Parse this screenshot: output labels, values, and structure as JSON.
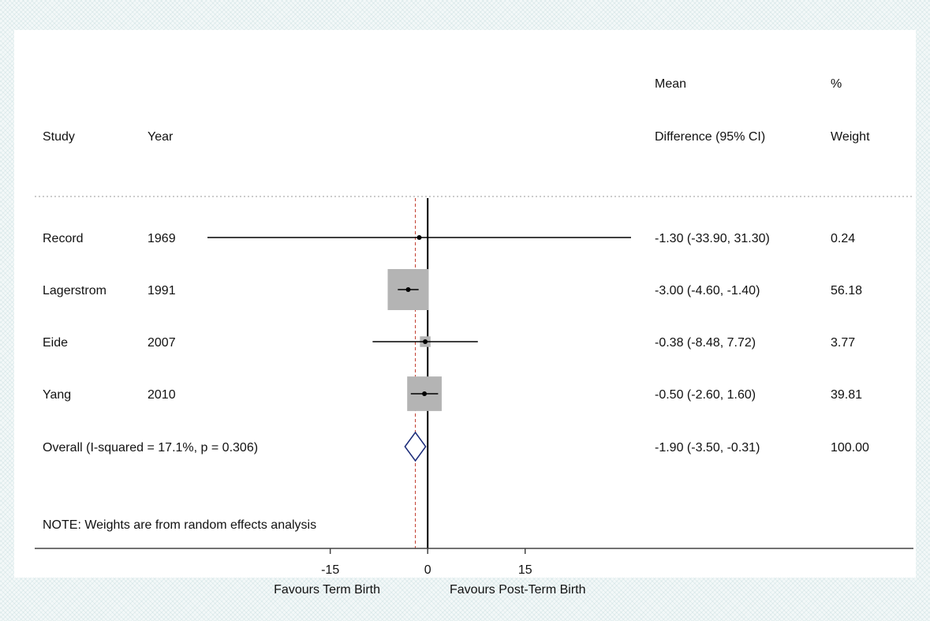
{
  "chart_data": {
    "type": "forest",
    "columns": {
      "study": "Study",
      "year": "Year",
      "md_line1": "Mean",
      "md_line2": "Difference (95% CI)",
      "weight_line1": "%",
      "weight_line2": "Weight"
    },
    "studies": [
      {
        "study": "Record",
        "year": "1969",
        "md": -1.3,
        "lo": -33.9,
        "hi": 31.3,
        "ci_text": "-1.30 (-33.90, 31.30)",
        "weight": 0.24,
        "weight_text": "0.24"
      },
      {
        "study": "Lagerstrom",
        "year": "1991",
        "md": -3.0,
        "lo": -4.6,
        "hi": -1.4,
        "ci_text": "-3.00 (-4.60, -1.40)",
        "weight": 56.18,
        "weight_text": "56.18"
      },
      {
        "study": "Eide",
        "year": "2007",
        "md": -0.38,
        "lo": -8.48,
        "hi": 7.72,
        "ci_text": "-0.38 (-8.48, 7.72)",
        "weight": 3.77,
        "weight_text": "3.77"
      },
      {
        "study": "Yang",
        "year": "2010",
        "md": -0.5,
        "lo": -2.6,
        "hi": 1.6,
        "ci_text": "-0.50 (-2.60, 1.60)",
        "weight": 39.81,
        "weight_text": "39.81"
      }
    ],
    "overall": {
      "label": "Overall  (I-squared = 17.1%, p = 0.306)",
      "md": -1.9,
      "lo": -3.5,
      "hi": -0.31,
      "ci_text": "-1.90 (-3.50, -0.31)",
      "weight_text": "100.00"
    },
    "note": "NOTE: Weights are from random effects analysis",
    "x_ticks": [
      {
        "value": -15,
        "label": "-15"
      },
      {
        "value": 0,
        "label": "0"
      },
      {
        "value": 15,
        "label": "15"
      }
    ],
    "xlim": [
      -33.9,
      31.3
    ],
    "favours_left": "Favours Term Birth",
    "favours_right": "Favours Post-Term Birth",
    "colors": {
      "box": "#b4b4b4",
      "diamond": "#1a2a78",
      "null_line": "#000000",
      "overall_line": "#c0392b"
    }
  }
}
